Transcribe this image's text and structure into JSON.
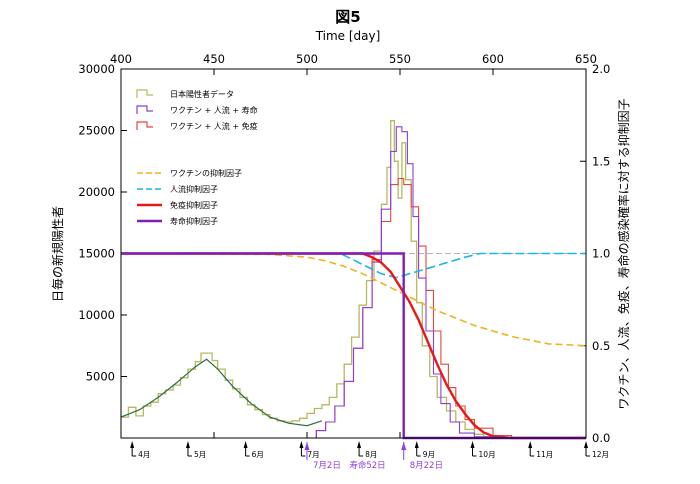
{
  "chart_data": {
    "type": "line",
    "title": "図5",
    "xlabel_top": "Time [day]",
    "ylabel_left": "日毎の新規陽性者",
    "ylabel_right": "ワクチン、人流、免疫、寿命の感染確率に対する抑制因子",
    "xlim": [
      400,
      650
    ],
    "ylim_left": [
      0,
      30000
    ],
    "ylim_right": [
      0,
      2.0
    ],
    "x_ticks": [
      400,
      450,
      500,
      550,
      600,
      650
    ],
    "y_left_ticks": [
      5000,
      10000,
      15000,
      20000,
      25000,
      30000
    ],
    "y_right_ticks": [
      "0.0",
      "0.5",
      "1.0",
      "1.5",
      "2.0"
    ],
    "grid": false,
    "legend_position": "top-left",
    "colors": {
      "observed": "#b8b860",
      "model_life": "#8a3ee0",
      "model_immunity": "#e8463c",
      "vaccine_factor": "#f2b21f",
      "mobility_factor": "#1cb6e6",
      "immunity_factor": "#e81818",
      "life_factor": "#7f1fb8",
      "trend": "#2f6e44",
      "axis": "#000000"
    },
    "legend": [
      {
        "key": "observed",
        "label": "日本陽性者データ",
        "style": "step"
      },
      {
        "key": "model_life",
        "label": "ワクチン + 人流 + 寿命",
        "style": "step"
      },
      {
        "key": "model_immunity",
        "label": "ワクチン + 人流 + 免疫",
        "style": "step"
      },
      {
        "key": "vaccine_factor",
        "label": "ワクチンの抑制因子",
        "style": "dashed"
      },
      {
        "key": "mobility_factor",
        "label": "人流抑制因子",
        "style": "dashed"
      },
      {
        "key": "immunity_factor",
        "label": "免疫抑制因子",
        "style": "solid"
      },
      {
        "key": "life_factor",
        "label": "寿命抑制因子",
        "style": "solid"
      }
    ],
    "months": [
      {
        "day": 406,
        "label": "4月"
      },
      {
        "day": 436,
        "label": "5月"
      },
      {
        "day": 467,
        "label": "6月"
      },
      {
        "day": 497,
        "label": "7月"
      },
      {
        "day": 528,
        "label": "8月"
      },
      {
        "day": 559,
        "label": "9月"
      },
      {
        "day": 589,
        "label": "10月"
      },
      {
        "day": 620,
        "label": "11月"
      },
      {
        "day": 650,
        "label": "12月"
      }
    ],
    "annotations": [
      {
        "day": 500,
        "label": "7月2日　寿命52日"
      },
      {
        "day": 552,
        "label": "8月22日"
      }
    ],
    "series": {
      "observed_counts": [
        [
          400,
          1700
        ],
        [
          404,
          2500
        ],
        [
          408,
          1800
        ],
        [
          412,
          2600
        ],
        [
          416,
          2900
        ],
        [
          420,
          3600
        ],
        [
          424,
          3900
        ],
        [
          428,
          4300
        ],
        [
          432,
          4900
        ],
        [
          436,
          5600
        ],
        [
          440,
          6200
        ],
        [
          443,
          6900
        ],
        [
          446,
          6900
        ],
        [
          449,
          6300
        ],
        [
          452,
          5600
        ],
        [
          456,
          4700
        ],
        [
          460,
          4000
        ],
        [
          464,
          3300
        ],
        [
          468,
          2700
        ],
        [
          472,
          2300
        ],
        [
          476,
          1900
        ],
        [
          480,
          1600
        ],
        [
          484,
          1400
        ],
        [
          488,
          1300
        ],
        [
          492,
          1400
        ],
        [
          496,
          1600
        ],
        [
          500,
          2000
        ],
        [
          504,
          2400
        ],
        [
          508,
          2700
        ],
        [
          512,
          3300
        ],
        [
          516,
          4400
        ],
        [
          520,
          6000
        ],
        [
          524,
          8200
        ],
        [
          528,
          10800
        ],
        [
          532,
          12800
        ],
        [
          536,
          15200
        ],
        [
          540,
          19000
        ],
        [
          543,
          22000
        ],
        [
          545,
          25800
        ],
        [
          547,
          22500
        ],
        [
          549,
          19500
        ],
        [
          551,
          24000
        ],
        [
          553,
          21000
        ],
        [
          556,
          16000
        ],
        [
          559,
          11000
        ],
        [
          562,
          7500
        ],
        [
          566,
          5000
        ],
        [
          570,
          3300
        ],
        [
          575,
          2200
        ],
        [
          580,
          1300
        ],
        [
          585,
          700
        ],
        [
          590,
          300
        ],
        [
          595,
          100
        ],
        [
          600,
          50
        ]
      ],
      "trend_counts": [
        [
          400,
          1700
        ],
        [
          410,
          2300
        ],
        [
          420,
          3300
        ],
        [
          430,
          4500
        ],
        [
          440,
          5800
        ],
        [
          446,
          6400
        ],
        [
          452,
          5600
        ],
        [
          460,
          4200
        ],
        [
          470,
          2800
        ],
        [
          480,
          1700
        ],
        [
          490,
          1200
        ],
        [
          500,
          1000
        ],
        [
          508,
          1400
        ]
      ],
      "model_life_counts": [
        [
          500,
          0
        ],
        [
          505,
          600
        ],
        [
          510,
          1300
        ],
        [
          515,
          2600
        ],
        [
          520,
          4600
        ],
        [
          525,
          7300
        ],
        [
          530,
          10600
        ],
        [
          535,
          14300
        ],
        [
          540,
          18600
        ],
        [
          545,
          23300
        ],
        [
          548,
          25300
        ],
        [
          551,
          24900
        ],
        [
          554,
          22300
        ],
        [
          557,
          18000
        ],
        [
          560,
          13000
        ],
        [
          564,
          8700
        ],
        [
          568,
          5200
        ],
        [
          572,
          2800
        ],
        [
          577,
          1300
        ],
        [
          582,
          400
        ],
        [
          590,
          100
        ],
        [
          600,
          0
        ],
        [
          650,
          0
        ]
      ],
      "model_immunity_counts": [
        [
          500,
          0
        ],
        [
          505,
          600
        ],
        [
          510,
          1300
        ],
        [
          515,
          2600
        ],
        [
          520,
          4600
        ],
        [
          525,
          7300
        ],
        [
          530,
          10600
        ],
        [
          535,
          14500
        ],
        [
          540,
          17600
        ],
        [
          545,
          20600
        ],
        [
          549,
          21100
        ],
        [
          552,
          20600
        ],
        [
          556,
          18800
        ],
        [
          560,
          15600
        ],
        [
          564,
          12000
        ],
        [
          568,
          8700
        ],
        [
          572,
          6000
        ],
        [
          576,
          4100
        ],
        [
          580,
          2600
        ],
        [
          585,
          1500
        ],
        [
          590,
          800
        ],
        [
          600,
          200
        ],
        [
          610,
          0
        ],
        [
          650,
          0
        ]
      ],
      "vaccine_factor": [
        [
          400,
          1.0
        ],
        [
          480,
          0.995
        ],
        [
          500,
          0.98
        ],
        [
          510,
          0.96
        ],
        [
          520,
          0.93
        ],
        [
          530,
          0.89
        ],
        [
          540,
          0.84
        ],
        [
          550,
          0.79
        ],
        [
          560,
          0.74
        ],
        [
          570,
          0.69
        ],
        [
          580,
          0.65
        ],
        [
          590,
          0.61
        ],
        [
          600,
          0.58
        ],
        [
          610,
          0.55
        ],
        [
          620,
          0.53
        ],
        [
          630,
          0.51
        ],
        [
          640,
          0.505
        ],
        [
          650,
          0.5
        ]
      ],
      "mobility_factor": [
        [
          400,
          1.0
        ],
        [
          518,
          1.0
        ],
        [
          530,
          0.94
        ],
        [
          540,
          0.89
        ],
        [
          548,
          0.87
        ],
        [
          555,
          0.89
        ],
        [
          565,
          0.92
        ],
        [
          575,
          0.95
        ],
        [
          585,
          0.98
        ],
        [
          593,
          1.0
        ],
        [
          650,
          1.0
        ]
      ],
      "immunity_factor": [
        [
          400,
          1.0
        ],
        [
          530,
          1.0
        ],
        [
          535,
          0.98
        ],
        [
          540,
          0.95
        ],
        [
          545,
          0.9
        ],
        [
          550,
          0.82
        ],
        [
          555,
          0.74
        ],
        [
          560,
          0.64
        ],
        [
          565,
          0.52
        ],
        [
          570,
          0.4
        ],
        [
          575,
          0.29
        ],
        [
          580,
          0.2
        ],
        [
          585,
          0.13
        ],
        [
          590,
          0.07
        ],
        [
          595,
          0.03
        ],
        [
          600,
          0.01
        ],
        [
          610,
          0.0
        ],
        [
          650,
          0.0
        ]
      ],
      "life_factor": [
        [
          400,
          1.0
        ],
        [
          552,
          1.0
        ],
        [
          552,
          0.0
        ],
        [
          650,
          0.0
        ]
      ]
    }
  }
}
